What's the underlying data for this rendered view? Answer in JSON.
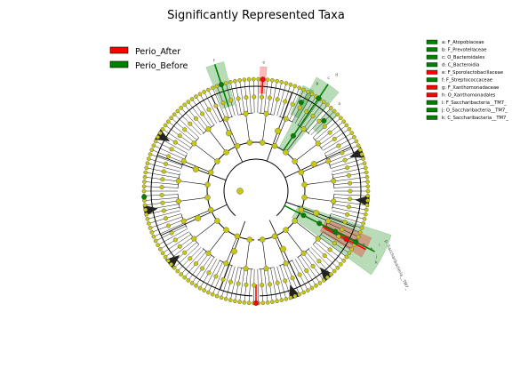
{
  "chart_data": {
    "type": "cladogram",
    "title": "Significantly Represented Taxa",
    "groups": [
      {
        "name": "Perio_After",
        "color": "#ff0000"
      },
      {
        "name": "Perio_Before",
        "color": "#008000"
      }
    ],
    "node_color": "#c8c814",
    "taxa": [
      {
        "key": "a",
        "name": "F_Atopobiaceae",
        "group": "Perio_Before"
      },
      {
        "key": "b",
        "name": "F_Prevotellaceae",
        "group": "Perio_Before"
      },
      {
        "key": "c",
        "name": "O_Bacteroidales",
        "group": "Perio_Before"
      },
      {
        "key": "d",
        "name": "C_Bacteroidia",
        "group": "Perio_Before"
      },
      {
        "key": "e",
        "name": "F_Sporolactobacillaceae",
        "group": "Perio_After"
      },
      {
        "key": "f",
        "name": "F_Streptococcaceae",
        "group": "Perio_Before"
      },
      {
        "key": "g",
        "name": "F_Xanthomonadaceae",
        "group": "Perio_After"
      },
      {
        "key": "h",
        "name": "O_Xanthomonadales",
        "group": "Perio_After"
      },
      {
        "key": "i",
        "name": "F_Saccharibacteria__TM7_",
        "group": "Perio_Before"
      },
      {
        "key": "j",
        "name": "O_Saccharibacteria__TM7_",
        "group": "Perio_Before"
      },
      {
        "key": "k",
        "name": "C_Saccharibacteria__TM7_",
        "group": "Perio_Before"
      }
    ],
    "clade_labels": [
      "p: Saccharibacteria__TM7_"
    ]
  }
}
